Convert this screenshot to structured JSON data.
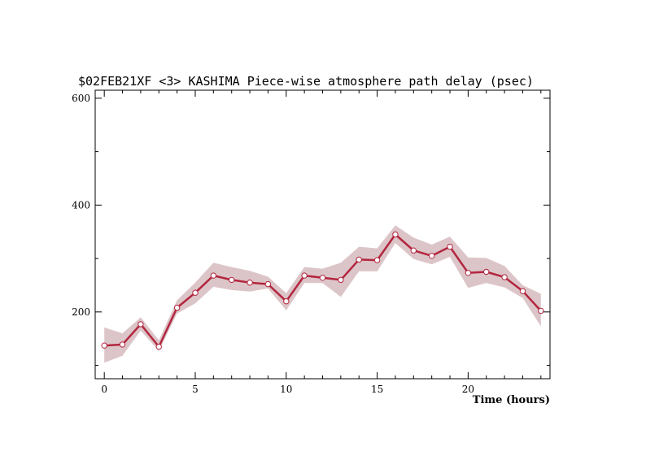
{
  "chart_data": {
    "type": "line",
    "title": "$02FEB21XF <3>  KASHIMA   Piece-wise atmosphere path delay (psec)",
    "xlabel": "Time (hours)",
    "ylabel": "",
    "xlim": [
      -0.5,
      24.5
    ],
    "ylim": [
      75,
      615
    ],
    "x_ticks": [
      0,
      5,
      10,
      15,
      20
    ],
    "x_tick_labels": [
      "0",
      "5",
      "10",
      "15",
      "20"
    ],
    "x_minor_step": 1,
    "y_ticks": [
      200,
      400,
      600
    ],
    "y_tick_labels": [
      "200",
      "400",
      "600"
    ],
    "y_minor_step": 100,
    "grid": false,
    "series": [
      {
        "x": [
          0,
          1,
          2,
          3,
          4,
          5,
          6,
          7,
          8,
          9,
          10,
          11,
          12,
          13,
          14,
          15,
          16,
          17,
          18,
          19,
          20,
          21,
          22,
          23,
          24
        ],
        "values": [
          137,
          139,
          177,
          135,
          208,
          236,
          268,
          260,
          255,
          252,
          220,
          268,
          264,
          260,
          298,
          297,
          345,
          315,
          305,
          322,
          273,
          275,
          265,
          239,
          202
        ],
        "band_low": [
          105,
          118,
          165,
          127,
          197,
          216,
          247,
          241,
          238,
          244,
          203,
          254,
          254,
          228,
          276,
          276,
          329,
          299,
          289,
          303,
          245,
          254,
          246,
          226,
          173
        ],
        "band_high": [
          171,
          160,
          190,
          147,
          222,
          255,
          292,
          284,
          277,
          266,
          235,
          284,
          281,
          292,
          322,
          319,
          362,
          339,
          326,
          341,
          302,
          301,
          286,
          250,
          234
        ]
      }
    ],
    "colors": {
      "line": "#b3263f",
      "band": "#dcc5c8",
      "marker_fill": "#ffffff",
      "axis": "#000000"
    }
  }
}
